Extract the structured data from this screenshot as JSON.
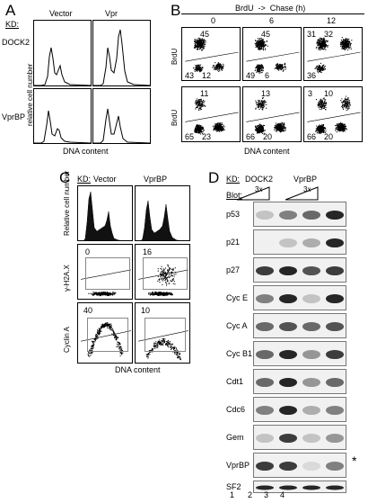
{
  "panel_a": {
    "letter": "A",
    "kd_label": "KD:",
    "col_labels": [
      "Vector",
      "Vpr"
    ],
    "row_labels": [
      "DOCK2",
      "VprBP"
    ],
    "ylabel": "relative cell number",
    "xlabel": "DNA content"
  },
  "panel_b": {
    "letter": "B",
    "header": "BrdU  ->  Chase (h)",
    "timepoints": [
      "0",
      "6",
      "12"
    ],
    "ylabel": "BrdU",
    "xlabel": "DNA content",
    "row1_numbers": [
      {
        "tl": "45",
        "bl": "43",
        "br": "12"
      },
      {
        "tl": "45",
        "bl": "49",
        "br": "6"
      },
      {
        "tl": "31",
        "tr": "32",
        "bl": "36"
      }
    ],
    "row2_numbers": [
      {
        "tl": "11",
        "bl": "65",
        "br": "23"
      },
      {
        "tl": "13",
        "bl": "66",
        "br": "20"
      },
      {
        "tl": "3",
        "tr": "10",
        "bl": "66",
        "br": "20"
      }
    ]
  },
  "panel_c": {
    "letter": "C",
    "kd_label": "KD:",
    "col_labels": [
      "Vector",
      "VprBP"
    ],
    "row_labels": [
      "Relative cell number",
      "γ-H2A.X",
      "Cyclin A"
    ],
    "gh2ax_values": [
      "0",
      "16"
    ],
    "cyclina_values": [
      "40",
      "10"
    ],
    "xlabel": "DNA content"
  },
  "panel_d": {
    "letter": "D",
    "kd_label": "KD:",
    "groups": [
      "DOCK2",
      "VprBP"
    ],
    "blot_label": "Blot:",
    "fold_label": "3x",
    "rows": [
      "p53",
      "p21",
      "p27",
      "Cyc E",
      "Cyc A",
      "Cyc B1",
      "Cdt1",
      "Cdc6",
      "Gem",
      "VprBP",
      "SF2"
    ],
    "asterisk": "*",
    "lanes": [
      "1",
      "2",
      "3",
      "4"
    ]
  }
}
